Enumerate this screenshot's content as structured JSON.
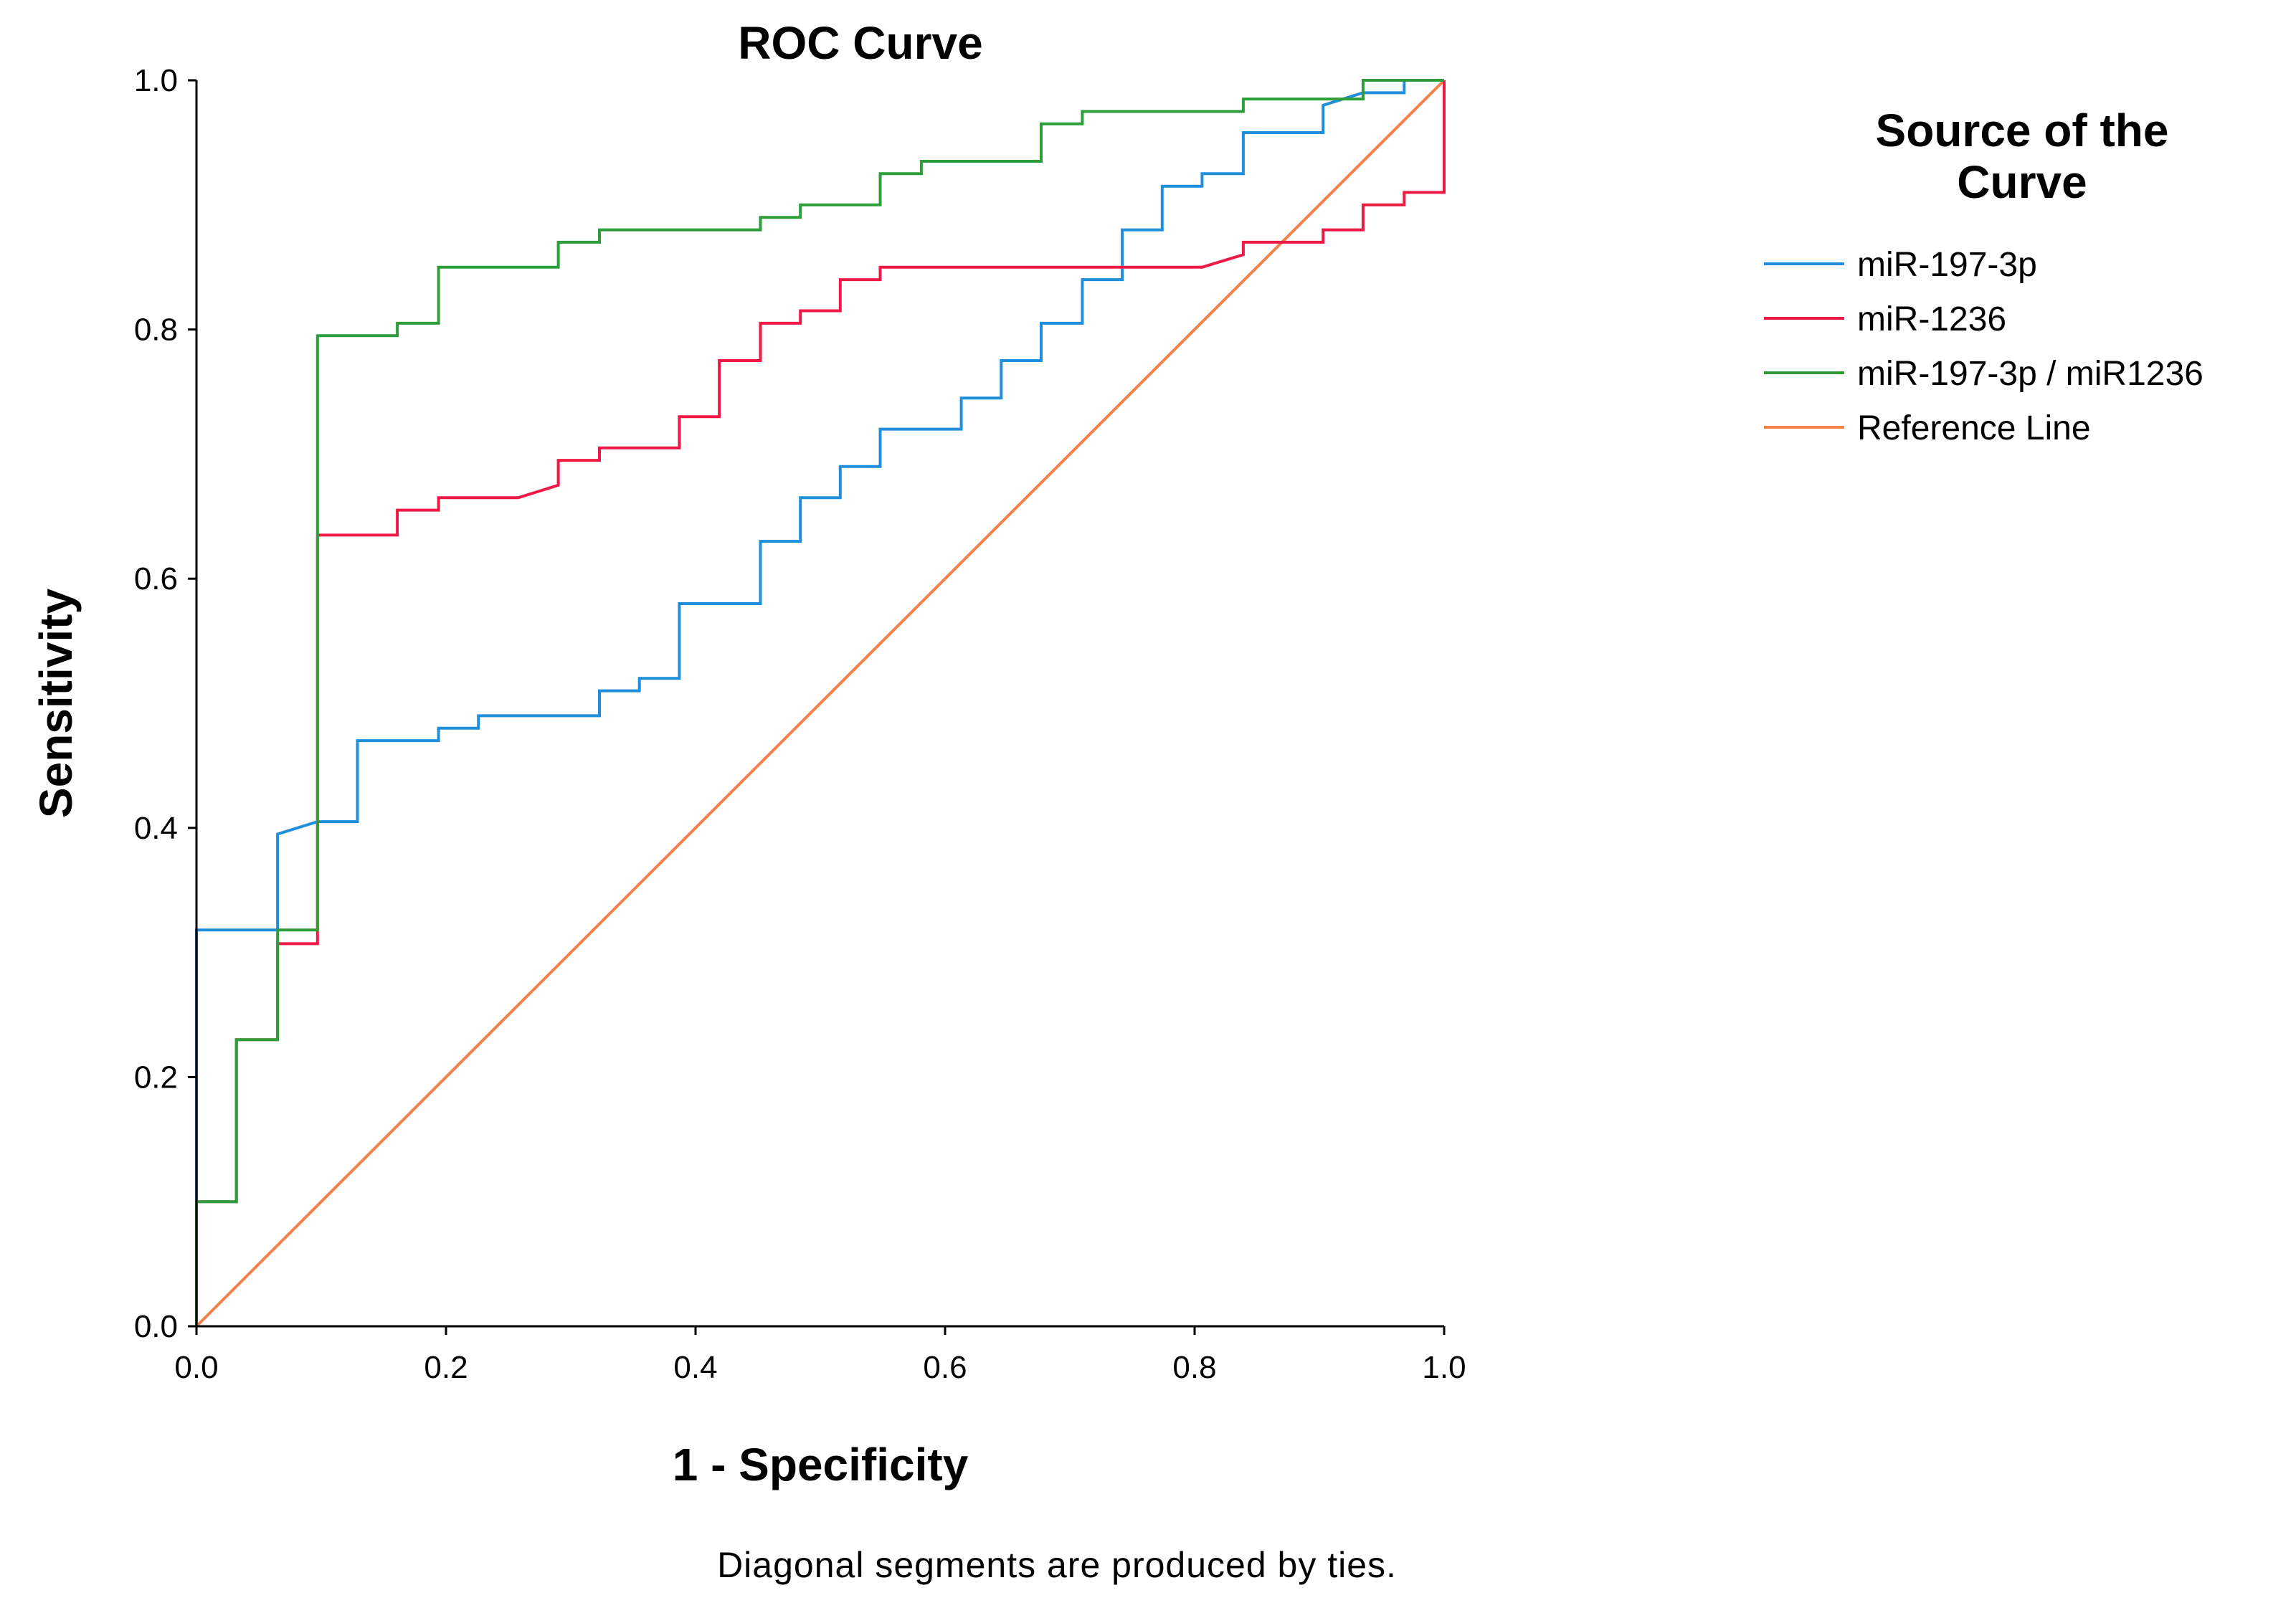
{
  "chart_data": {
    "type": "line",
    "title": "ROC Curve",
    "xlabel": "1 - Specificity",
    "ylabel": "Sensitivity",
    "xlim": [
      0,
      1
    ],
    "ylim": [
      0,
      1
    ],
    "x_ticks": [
      "0.0",
      "0.2",
      "0.4",
      "0.6",
      "0.8",
      "1.0"
    ],
    "y_ticks": [
      "0.0",
      "0.2",
      "0.4",
      "0.6",
      "0.8",
      "1.0"
    ],
    "grid": false,
    "legend_title_lines": [
      "Source of the",
      "Curve"
    ],
    "legend_position": "right",
    "footnote": "Diagonal segments are produced by ties.",
    "series": [
      {
        "name": "miR-197-3p",
        "color": "#1f8fdc",
        "points": [
          [
            0,
            0
          ],
          [
            0,
            0.318
          ],
          [
            0.065,
            0.318
          ],
          [
            0.065,
            0.395
          ],
          [
            0.097,
            0.405
          ],
          [
            0.129,
            0.405
          ],
          [
            0.129,
            0.47
          ],
          [
            0.194,
            0.47
          ],
          [
            0.194,
            0.48
          ],
          [
            0.226,
            0.48
          ],
          [
            0.226,
            0.49
          ],
          [
            0.323,
            0.49
          ],
          [
            0.323,
            0.51
          ],
          [
            0.355,
            0.51
          ],
          [
            0.355,
            0.52
          ],
          [
            0.387,
            0.52
          ],
          [
            0.387,
            0.58
          ],
          [
            0.452,
            0.58
          ],
          [
            0.452,
            0.63
          ],
          [
            0.484,
            0.63
          ],
          [
            0.484,
            0.665
          ],
          [
            0.516,
            0.665
          ],
          [
            0.516,
            0.69
          ],
          [
            0.548,
            0.69
          ],
          [
            0.548,
            0.72
          ],
          [
            0.613,
            0.72
          ],
          [
            0.613,
            0.745
          ],
          [
            0.645,
            0.745
          ],
          [
            0.645,
            0.775
          ],
          [
            0.677,
            0.775
          ],
          [
            0.677,
            0.805
          ],
          [
            0.71,
            0.805
          ],
          [
            0.71,
            0.84
          ],
          [
            0.742,
            0.84
          ],
          [
            0.742,
            0.88
          ],
          [
            0.774,
            0.88
          ],
          [
            0.774,
            0.915
          ],
          [
            0.806,
            0.915
          ],
          [
            0.806,
            0.925
          ],
          [
            0.839,
            0.925
          ],
          [
            0.839,
            0.958
          ],
          [
            0.903,
            0.958
          ],
          [
            0.903,
            0.98
          ],
          [
            0.935,
            0.99
          ],
          [
            0.968,
            0.99
          ],
          [
            0.968,
            1.0
          ],
          [
            1.0,
            1.0
          ]
        ]
      },
      {
        "name": "miR-1236",
        "color": "#ee1a45",
        "points": [
          [
            0,
            0
          ],
          [
            0,
            0.1
          ],
          [
            0.032,
            0.1
          ],
          [
            0.032,
            0.23
          ],
          [
            0.065,
            0.23
          ],
          [
            0.065,
            0.307
          ],
          [
            0.097,
            0.307
          ],
          [
            0.097,
            0.635
          ],
          [
            0.161,
            0.635
          ],
          [
            0.161,
            0.655
          ],
          [
            0.194,
            0.655
          ],
          [
            0.194,
            0.665
          ],
          [
            0.258,
            0.665
          ],
          [
            0.29,
            0.675
          ],
          [
            0.29,
            0.695
          ],
          [
            0.323,
            0.695
          ],
          [
            0.323,
            0.705
          ],
          [
            0.387,
            0.705
          ],
          [
            0.387,
            0.73
          ],
          [
            0.419,
            0.73
          ],
          [
            0.419,
            0.775
          ],
          [
            0.452,
            0.775
          ],
          [
            0.452,
            0.805
          ],
          [
            0.484,
            0.805
          ],
          [
            0.484,
            0.815
          ],
          [
            0.516,
            0.815
          ],
          [
            0.516,
            0.84
          ],
          [
            0.548,
            0.84
          ],
          [
            0.548,
            0.85
          ],
          [
            0.806,
            0.85
          ],
          [
            0.839,
            0.86
          ],
          [
            0.839,
            0.87
          ],
          [
            0.903,
            0.87
          ],
          [
            0.903,
            0.88
          ],
          [
            0.935,
            0.88
          ],
          [
            0.935,
            0.9
          ],
          [
            0.968,
            0.9
          ],
          [
            0.968,
            0.91
          ],
          [
            1.0,
            0.91
          ],
          [
            1.0,
            1.0
          ]
        ]
      },
      {
        "name": "miR-197-3p / miR1236",
        "color": "#2e9e3a",
        "points": [
          [
            0,
            0
          ],
          [
            0,
            0.1
          ],
          [
            0.032,
            0.1
          ],
          [
            0.032,
            0.23
          ],
          [
            0.065,
            0.23
          ],
          [
            0.065,
            0.318
          ],
          [
            0.097,
            0.318
          ],
          [
            0.097,
            0.795
          ],
          [
            0.161,
            0.795
          ],
          [
            0.161,
            0.805
          ],
          [
            0.194,
            0.805
          ],
          [
            0.194,
            0.85
          ],
          [
            0.29,
            0.85
          ],
          [
            0.29,
            0.87
          ],
          [
            0.323,
            0.87
          ],
          [
            0.323,
            0.88
          ],
          [
            0.452,
            0.88
          ],
          [
            0.452,
            0.89
          ],
          [
            0.484,
            0.89
          ],
          [
            0.484,
            0.9
          ],
          [
            0.548,
            0.9
          ],
          [
            0.548,
            0.925
          ],
          [
            0.581,
            0.925
          ],
          [
            0.581,
            0.935
          ],
          [
            0.677,
            0.935
          ],
          [
            0.677,
            0.965
          ],
          [
            0.71,
            0.965
          ],
          [
            0.71,
            0.975
          ],
          [
            0.839,
            0.975
          ],
          [
            0.839,
            0.985
          ],
          [
            0.935,
            0.985
          ],
          [
            0.935,
            1.0
          ],
          [
            1.0,
            1.0
          ]
        ]
      },
      {
        "name": "Reference Line",
        "color": "#f4804b",
        "points": [
          [
            0,
            0
          ],
          [
            1,
            1
          ]
        ]
      }
    ]
  }
}
